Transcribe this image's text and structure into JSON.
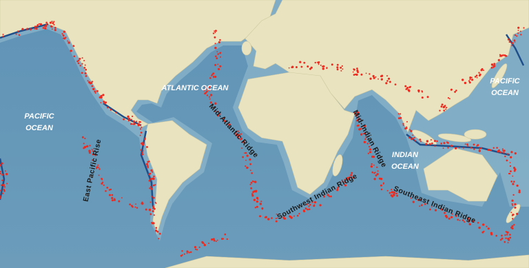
{
  "labels": {
    "pacific_west": [
      "PACIFIC",
      "OCEAN"
    ],
    "atlantic": "ATLANTIC  OCEAN",
    "mid_atlantic_ridge": "Mid-Atlantic Ridge",
    "east_pacific_rise": "East Pacific Rise",
    "mid_indian_ridge": "Mid-Indian Ridge",
    "indian": [
      "INDIAN",
      "OCEAN"
    ],
    "pacific_east": [
      "PACIFIC",
      "OCEAN"
    ],
    "southwest_indian_ridge": "Southwest Indian Ridge",
    "southeast_indian_ridge": "Southeast Indian Ridge"
  }
}
